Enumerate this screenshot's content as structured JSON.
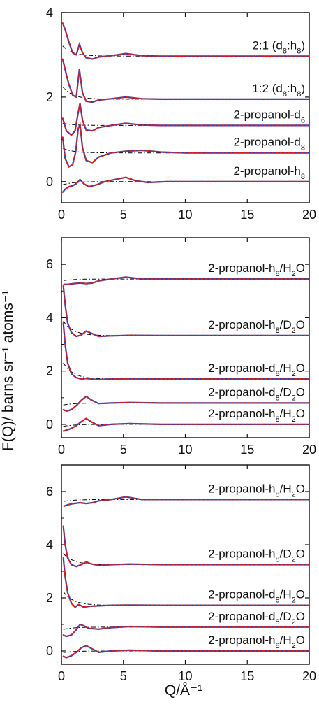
{
  "figure": {
    "ylabel": "F(Q)/ barns sr⁻¹ atoms⁻¹",
    "xlabel": "Q/Å⁻¹"
  },
  "colors": {
    "fit": "#2c3fb8",
    "data": "#e0201b",
    "background": "#000000",
    "axis": "#111111"
  },
  "chart_data": [
    {
      "type": "line",
      "panel": "top",
      "xlim": [
        0,
        20
      ],
      "ylim": [
        -0.5,
        4
      ],
      "xticks": [
        0,
        5,
        10,
        15,
        20
      ],
      "yticks": [
        0,
        2,
        4
      ],
      "grid": false,
      "series_styles": {
        "data": "red dotted",
        "fit": "blue solid",
        "background": "black dash-dot"
      },
      "curves": [
        {
          "label": "2:1 (d₈:h₈)",
          "baseline": 2.97,
          "x": [
            0.1,
            0.3,
            0.6,
            0.9,
            1.2,
            1.45,
            1.7,
            2.0,
            2.5,
            3.0,
            4.0,
            5.2,
            6.5,
            8,
            10,
            12,
            15,
            20
          ],
          "y": [
            3.75,
            3.6,
            3.3,
            3.05,
            3.0,
            3.25,
            3.05,
            2.93,
            2.9,
            2.95,
            2.98,
            3.03,
            2.98,
            2.97,
            2.97,
            2.97,
            2.97,
            2.97
          ]
        },
        {
          "label": "1:2 (d₈:h₈)",
          "baseline": 1.95,
          "x": [
            0.1,
            0.3,
            0.6,
            0.9,
            1.2,
            1.45,
            1.7,
            2.0,
            2.5,
            3.0,
            4.0,
            5.2,
            6.5,
            8,
            10,
            12,
            15,
            20
          ],
          "y": [
            2.9,
            2.65,
            2.3,
            2.05,
            2.0,
            2.65,
            2.1,
            1.9,
            1.88,
            1.93,
            1.96,
            2.0,
            1.96,
            1.95,
            1.95,
            1.95,
            1.95,
            1.95
          ]
        },
        {
          "label": "2-propanol-d₆",
          "baseline": 1.33,
          "x": [
            0.1,
            0.4,
            0.8,
            1.1,
            1.3,
            1.5,
            1.7,
            2.0,
            2.5,
            3.0,
            4.0,
            5.2,
            6.5,
            8,
            10,
            15,
            20
          ],
          "y": [
            1.5,
            1.2,
            1.1,
            1.2,
            1.55,
            1.85,
            1.45,
            1.22,
            1.2,
            1.28,
            1.33,
            1.38,
            1.34,
            1.33,
            1.33,
            1.33,
            1.33
          ]
        },
        {
          "label": "2-propanol-d₈",
          "baseline": 0.68,
          "x": [
            0.1,
            0.3,
            0.6,
            0.9,
            1.15,
            1.35,
            1.5,
            1.7,
            2.0,
            2.5,
            3.0,
            4.0,
            5.2,
            6.5,
            8,
            10,
            15,
            20
          ],
          "y": [
            1.05,
            0.55,
            0.35,
            0.4,
            0.7,
            1.25,
            1.35,
            0.8,
            0.5,
            0.45,
            0.58,
            0.68,
            0.72,
            0.74,
            0.7,
            0.68,
            0.68,
            0.68
          ]
        },
        {
          "label": "2-propanol-h₈",
          "baseline": 0.0,
          "x": [
            0.1,
            0.3,
            0.6,
            0.9,
            1.2,
            1.5,
            1.8,
            2.2,
            2.8,
            3.5,
            4.3,
            5.2,
            6.0,
            7.0,
            8.5,
            10,
            12,
            15,
            20
          ],
          "y": [
            -0.25,
            -0.18,
            -0.12,
            -0.1,
            -0.05,
            0.05,
            -0.05,
            -0.12,
            -0.08,
            0.0,
            0.05,
            0.1,
            0.02,
            -0.02,
            0.0,
            0.0,
            0.0,
            0.0,
            0.0
          ]
        }
      ]
    },
    {
      "type": "line",
      "panel": "middle",
      "xlim": [
        0,
        20
      ],
      "ylim": [
        -0.5,
        7
      ],
      "xticks": [
        0,
        5,
        10,
        15,
        20
      ],
      "yticks": [
        0,
        2,
        4,
        6
      ],
      "grid": false,
      "series_styles": {
        "data": "red dotted",
        "fit": "blue solid",
        "background": "black dash-dot"
      },
      "curves": [
        {
          "label": "2-propanol-h₈/H₂O",
          "baseline": 5.45,
          "x": [
            0.2,
            0.5,
            1.0,
            1.5,
            2.0,
            2.5,
            3.0,
            4.0,
            5.2,
            6.5,
            8,
            10,
            15,
            20
          ],
          "y": [
            5.25,
            5.25,
            5.28,
            5.3,
            5.28,
            5.3,
            5.38,
            5.45,
            5.52,
            5.45,
            5.45,
            5.45,
            5.45,
            5.45
          ]
        },
        {
          "label": "2-propanol-h₈/D₂O",
          "baseline": 3.33,
          "x": [
            0.15,
            0.3,
            0.5,
            0.8,
            1.2,
            1.6,
            2.0,
            2.4,
            3.0,
            4.0,
            5.5,
            8,
            10,
            15,
            20
          ],
          "y": [
            5.2,
            4.5,
            3.8,
            3.45,
            3.3,
            3.35,
            3.5,
            3.42,
            3.3,
            3.32,
            3.34,
            3.33,
            3.33,
            3.33,
            3.33
          ]
        },
        {
          "label": "2-propanol-d₈/H₂O",
          "baseline": 1.7,
          "x": [
            0.15,
            0.3,
            0.5,
            0.8,
            1.2,
            1.6,
            2.0,
            2.4,
            3.0,
            4.0,
            5.5,
            8,
            10,
            15,
            20
          ],
          "y": [
            3.8,
            3.0,
            2.3,
            1.9,
            1.75,
            1.7,
            1.72,
            1.7,
            1.68,
            1.7,
            1.71,
            1.7,
            1.7,
            1.7,
            1.7
          ]
        },
        {
          "label": "2-propanol-d₈/D₂O",
          "baseline": 0.8,
          "x": [
            0.15,
            0.4,
            0.8,
            1.2,
            1.6,
            2.0,
            2.4,
            3.0,
            4.0,
            5.5,
            8,
            10,
            15,
            20
          ],
          "y": [
            0.55,
            0.5,
            0.55,
            0.7,
            0.9,
            1.05,
            0.92,
            0.78,
            0.8,
            0.82,
            0.8,
            0.8,
            0.8,
            0.8
          ]
        },
        {
          "label": "2-propanol-h₈/H₂O",
          "baseline": 0.0,
          "x": [
            0.15,
            0.4,
            0.8,
            1.2,
            1.6,
            2.0,
            2.4,
            3.0,
            4.0,
            5.5,
            8,
            10,
            15,
            20
          ],
          "y": [
            -0.25,
            -0.22,
            -0.15,
            -0.05,
            0.1,
            0.22,
            0.1,
            -0.05,
            0.0,
            0.03,
            0.0,
            0.0,
            0.0,
            0.0
          ]
        }
      ]
    },
    {
      "type": "line",
      "panel": "bottom",
      "xlim": [
        0,
        20
      ],
      "ylim": [
        -0.5,
        7
      ],
      "xticks": [
        0,
        5,
        10,
        15,
        20
      ],
      "yticks": [
        0,
        2,
        4,
        6
      ],
      "grid": false,
      "series_styles": {
        "data": "red dotted",
        "fit": "blue solid",
        "background": "black dash-dot"
      },
      "curves": [
        {
          "label": "2-propanol-h₈/H₂O",
          "baseline": 5.7,
          "x": [
            0.2,
            0.5,
            1.0,
            1.5,
            2.0,
            2.5,
            3.0,
            4.0,
            5.2,
            6.5,
            8,
            10,
            15,
            20
          ],
          "y": [
            5.45,
            5.5,
            5.55,
            5.58,
            5.55,
            5.58,
            5.65,
            5.7,
            5.8,
            5.7,
            5.7,
            5.7,
            5.7,
            5.7
          ]
        },
        {
          "label": "2-propanol-h₈/D₂O",
          "baseline": 3.25,
          "x": [
            0.15,
            0.3,
            0.5,
            0.8,
            1.2,
            1.6,
            2.0,
            2.4,
            3.0,
            4.0,
            5.5,
            8,
            10,
            15,
            20
          ],
          "y": [
            4.7,
            4.0,
            3.5,
            3.25,
            3.18,
            3.25,
            3.35,
            3.28,
            3.22,
            3.25,
            3.27,
            3.25,
            3.25,
            3.25,
            3.25
          ]
        },
        {
          "label": "2-propanol-d₈/H₂O",
          "baseline": 1.72,
          "x": [
            0.15,
            0.3,
            0.5,
            0.8,
            1.1,
            1.4,
            1.8,
            2.2,
            3.0,
            4.0,
            5.5,
            8,
            10,
            15,
            20
          ],
          "y": [
            3.5,
            2.8,
            2.2,
            1.8,
            1.65,
            1.75,
            1.65,
            1.68,
            1.7,
            1.72,
            1.73,
            1.72,
            1.72,
            1.72,
            1.72
          ]
        },
        {
          "label": "2-propanol-d₈/D₂O",
          "baseline": 0.9,
          "x": [
            0.15,
            0.4,
            0.8,
            1.2,
            1.5,
            1.8,
            2.2,
            3.0,
            4.0,
            5.5,
            8,
            10,
            15,
            20
          ],
          "y": [
            0.6,
            0.55,
            0.6,
            0.8,
            1.0,
            0.95,
            0.85,
            0.82,
            0.88,
            0.92,
            0.9,
            0.9,
            0.9,
            0.9
          ]
        },
        {
          "label": "2-propanol-h₈/H₂O",
          "baseline": 0.0,
          "x": [
            0.15,
            0.4,
            0.8,
            1.2,
            1.6,
            2.0,
            2.4,
            3.0,
            4.0,
            5.5,
            8,
            10,
            15,
            20
          ],
          "y": [
            -0.2,
            -0.25,
            -0.18,
            -0.05,
            0.12,
            0.2,
            0.1,
            -0.05,
            0.0,
            0.03,
            0.0,
            0.0,
            0.0,
            0.0
          ]
        }
      ]
    }
  ]
}
